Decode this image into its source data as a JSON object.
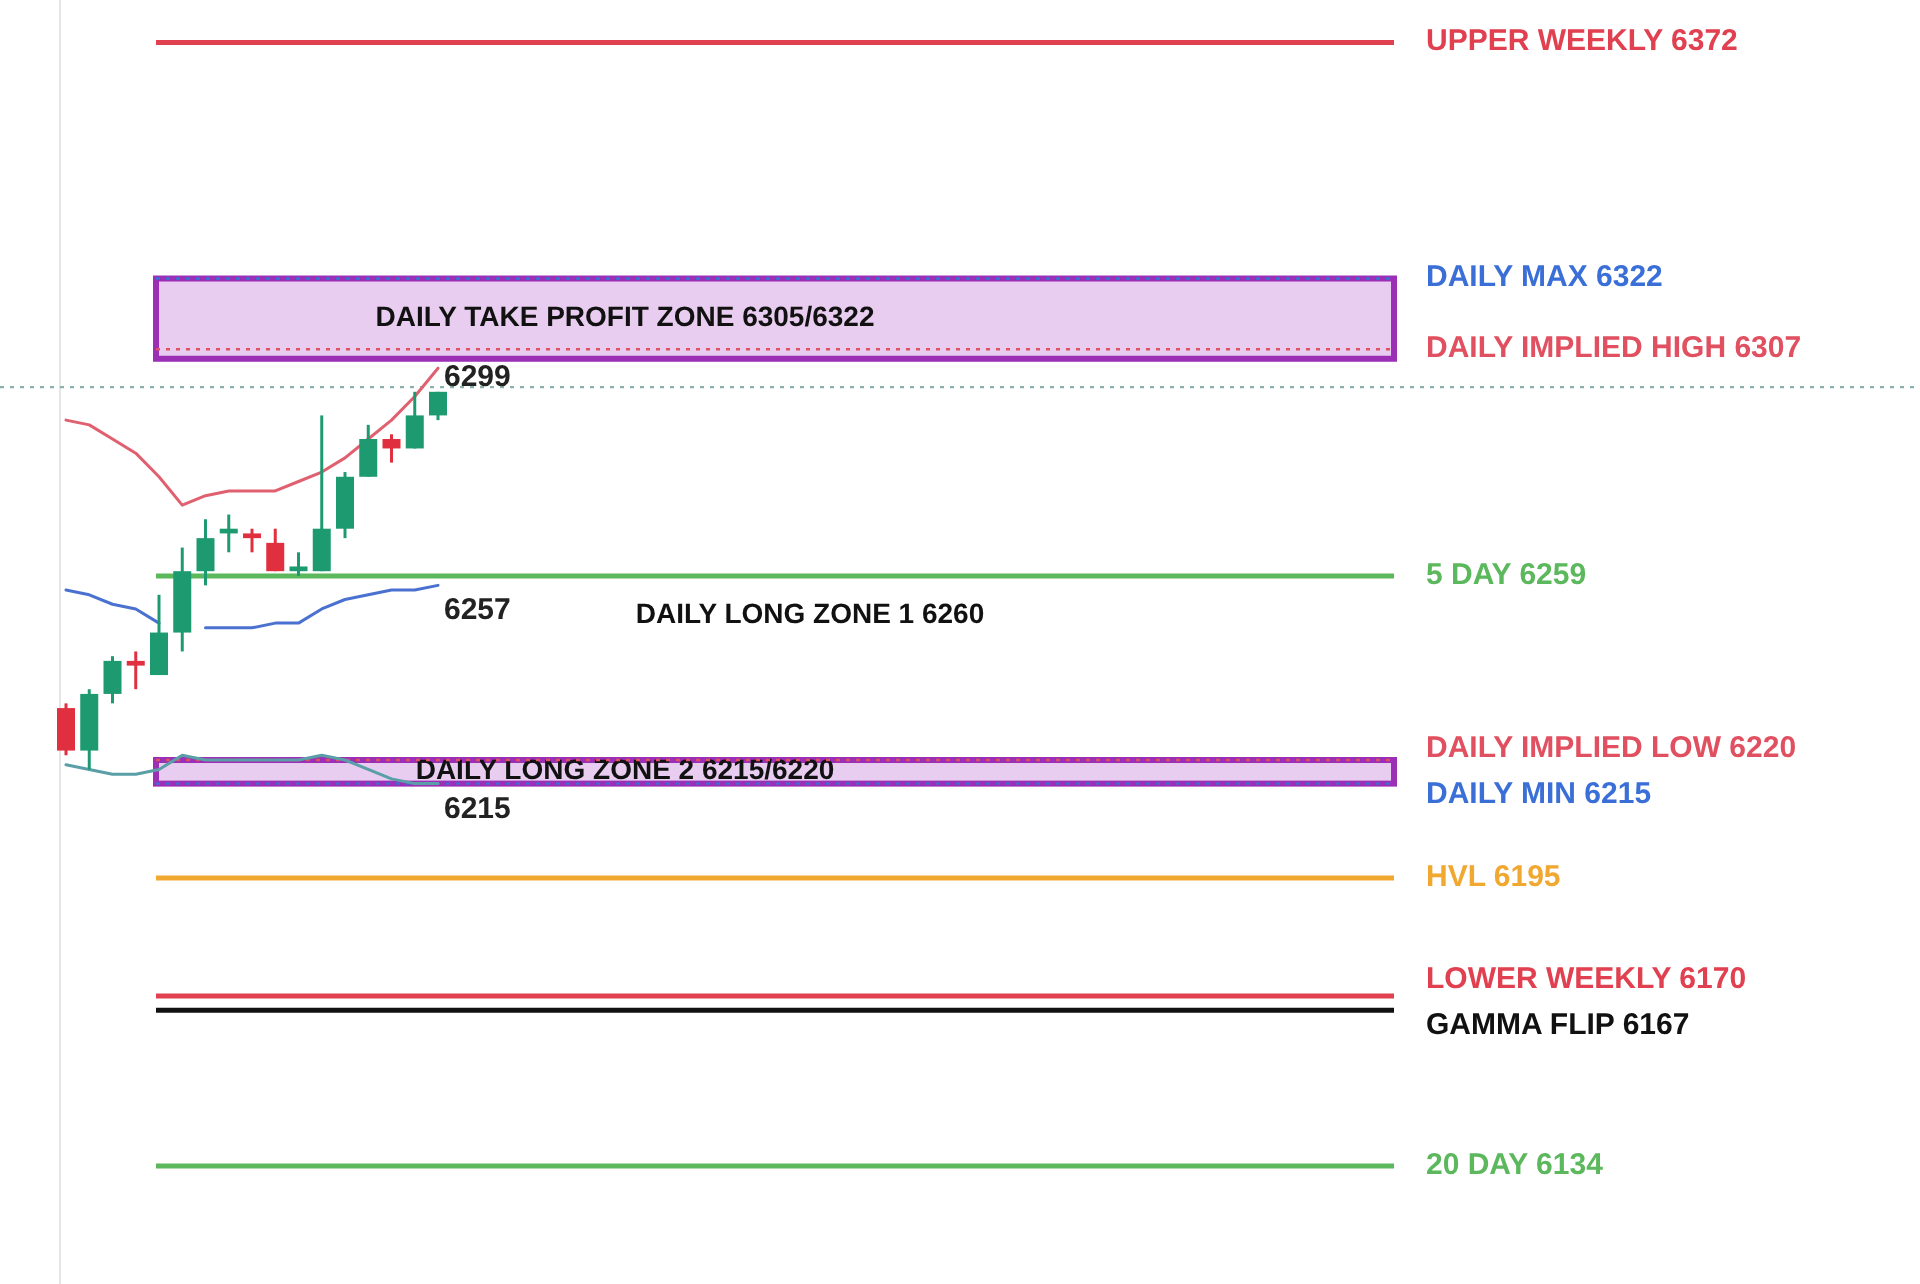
{
  "chart_data": {
    "type": "candlestick",
    "ylim": [
      6109,
      6381
    ],
    "categories": [
      null,
      null,
      null,
      null,
      null,
      null,
      null,
      null,
      null,
      null,
      null,
      null,
      null,
      null,
      null,
      null,
      null
    ],
    "ohlc": [
      [
        6231,
        6232,
        6221,
        6222
      ],
      [
        6222,
        6235,
        6218,
        6234
      ],
      [
        6234,
        6242,
        6232,
        6241
      ],
      [
        6241,
        6243,
        6235,
        6240
      ],
      [
        6238,
        6255,
        6238,
        6247
      ],
      [
        6247,
        6265,
        6243,
        6260
      ],
      [
        6260,
        6271,
        6257,
        6267
      ],
      [
        6268,
        6272,
        6264,
        6269
      ],
      [
        6268,
        6269,
        6264,
        6267
      ],
      [
        6266,
        6269,
        6260,
        6260
      ],
      [
        6260,
        6264,
        6259,
        6261
      ],
      [
        6260,
        6293,
        6260,
        6269
      ],
      [
        6269,
        6281,
        6267,
        6280
      ],
      [
        6280,
        6291,
        6280,
        6288
      ],
      [
        6288,
        6289,
        6283,
        6286
      ],
      [
        6286,
        6298,
        6286,
        6293
      ],
      [
        6293,
        6298,
        6292,
        6298
      ]
    ],
    "value_labels": [
      null,
      null,
      null,
      null,
      null,
      null,
      null,
      null,
      null,
      null,
      null,
      null,
      null,
      null,
      null,
      null,
      "6299"
    ],
    "series": [
      {
        "type": "line",
        "color": "#e06070",
        "values": [
          6292,
          6291,
          6288,
          6285,
          6280,
          6274,
          6276,
          6277,
          6277,
          6277,
          6279,
          6281,
          6284,
          6288,
          6292,
          6297,
          6303
        ]
      },
      {
        "type": "line",
        "color": "#4a70d0",
        "values": [
          6256,
          6255,
          6253,
          6252,
          6249,
          null,
          6248,
          6248,
          6248,
          6249,
          6249,
          6252,
          6254,
          6255,
          6256,
          6256,
          6257
        ],
        "value_labels": [
          null,
          null,
          null,
          null,
          null,
          null,
          null,
          null,
          null,
          null,
          null,
          null,
          null,
          null,
          null,
          null,
          "6257"
        ]
      },
      {
        "type": "line",
        "color": "#5a9fa8",
        "values": [
          6219,
          6218,
          6217,
          6217,
          6218,
          6221,
          6220,
          6220,
          6220,
          6220,
          6220,
          6221,
          6220,
          6218,
          6216,
          6215,
          6215
        ],
        "value_labels": [
          null,
          null,
          null,
          null,
          null,
          null,
          null,
          null,
          null,
          null,
          null,
          null,
          null,
          null,
          null,
          null,
          "6215"
        ]
      }
    ],
    "ref_lines": [
      {
        "axis": "y",
        "value": 6372,
        "label": "UPPER WEEKLY 6372",
        "color": "#e0404f",
        "line_style": "solid"
      },
      {
        "axis": "y",
        "value": 6322,
        "label": "DAILY MAX 6322",
        "color": "#3a6fd8",
        "line_style": "dotted"
      },
      {
        "axis": "y",
        "value": 6307,
        "label": "DAILY IMPLIED HIGH 6307",
        "color": "#e05060",
        "line_style": "dotted"
      },
      {
        "axis": "y",
        "value": 6299,
        "color": "#8ab0b0",
        "line_style": "dotted"
      },
      {
        "axis": "y",
        "value": 6259,
        "label": "5 DAY 6259",
        "color": "#5cb85c",
        "line_style": "solid"
      },
      {
        "axis": "y",
        "value": 6220,
        "label": "DAILY IMPLIED LOW 6220",
        "color": "#e05060",
        "line_style": "dotted"
      },
      {
        "axis": "y",
        "value": 6215,
        "label": "DAILY MIN 6215",
        "color": "#3a6fd8",
        "line_style": "dotted"
      },
      {
        "axis": "y",
        "value": 6195,
        "label": "HVL 6195",
        "color": "#f0a830",
        "line_style": "solid"
      },
      {
        "axis": "y",
        "value": 6170,
        "label": "LOWER WEEKLY 6170",
        "color": "#e0404f",
        "line_style": "solid"
      },
      {
        "axis": "y",
        "value": 6167,
        "label": "GAMMA FLIP 6167",
        "color": "#111111",
        "line_style": "solid"
      },
      {
        "axis": "y",
        "value": 6134,
        "label": "20 DAY 6134",
        "color": "#5cb85c",
        "line_style": "solid"
      }
    ],
    "bands": [
      {
        "axis": "y",
        "from": 6305,
        "to": 6322,
        "label": "DAILY TAKE PROFIT ZONE 6305/6322",
        "color": "#e8cdf0"
      },
      {
        "axis": "y",
        "from": 6215,
        "to": 6220,
        "label": "DAILY LONG ZONE 2 6215/6220",
        "color": "#e8cdf0"
      }
    ],
    "annotations": [
      "DAILY LONG ZONE 1 6260"
    ]
  }
}
